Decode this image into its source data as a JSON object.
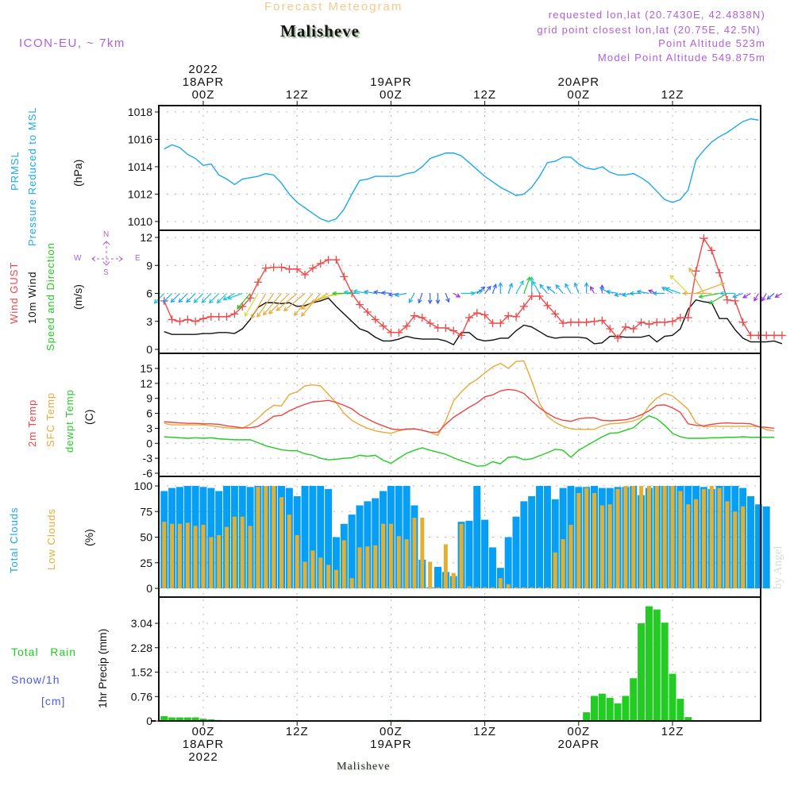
{
  "header": {
    "subtitle": "Forecast Meteogram",
    "title": "Malisheve",
    "model": "ICON-EU, ~ 7km",
    "requested": "requested lon,lat (20.7430E, 42.4838N)",
    "grid_point": "grid point closest lon,lat (20.75E, 42.5N)",
    "point_altitude": "Point Altitude 523m",
    "model_altitude": "Model Point Altitude 549.875m"
  },
  "footer": {
    "station": "Malisheve",
    "credit": "by Angel"
  },
  "top_axis": [
    {
      "hour": 0,
      "lines": [
        "2022",
        "18APR",
        "00Z"
      ]
    },
    {
      "hour": 12,
      "lines": [
        "12Z"
      ]
    },
    {
      "hour": 24,
      "lines": [
        "19APR",
        "00Z"
      ]
    },
    {
      "hour": 36,
      "lines": [
        "12Z"
      ]
    },
    {
      "hour": 48,
      "lines": [
        "20APR",
        "00Z"
      ]
    },
    {
      "hour": 60,
      "lines": [
        "12Z"
      ]
    }
  ],
  "bottom_axis": [
    {
      "hour": 0,
      "lines": [
        "00Z",
        "18APR",
        "2022"
      ]
    },
    {
      "hour": 12,
      "lines": [
        "12Z"
      ]
    },
    {
      "hour": 24,
      "lines": [
        "00Z",
        "19APR"
      ]
    },
    {
      "hour": 36,
      "lines": [
        "12Z"
      ]
    },
    {
      "hour": 48,
      "lines": [
        "00Z",
        "20APR"
      ]
    },
    {
      "hour": 60,
      "lines": [
        "12Z"
      ]
    }
  ],
  "labels": {
    "pressure": {
      "l1": "PRMSL",
      "l2": "Pressure Reduced to MSL",
      "unit": "(hPa)"
    },
    "wind": {
      "l1": "Wind GUST",
      "l2": "10m Wind",
      "l3": "Speed and Direction",
      "unit": "(m/s)",
      "compass": {
        "n": "N",
        "s": "S",
        "w": "W",
        "e": "E"
      }
    },
    "temp": {
      "l1": "2m Temp",
      "l2": "SFC Temp",
      "l3": "dewpt Temp",
      "unit": "(C)"
    },
    "clouds": {
      "l1": "Total Clouds",
      "l2": "Low Clouds",
      "unit": "(%)"
    },
    "precip": {
      "l1": "Total",
      "l1b": "Rain",
      "l2": "Snow/1h",
      "l3": "[cm]",
      "unit": "1hr Precip (mm)"
    }
  },
  "colors": {
    "pressure": "#1ea7ee",
    "gust": "#f04848",
    "wind": "#111111",
    "temp2m": "#ee4444",
    "sfc": "#e8a93a",
    "dewpt": "#22cc22",
    "total_clouds": "#079ff5",
    "low_clouds": "#e4ae30",
    "rain": "#22cc22",
    "snow": "#4a5ae8",
    "label_purple": "#b15fd8"
  },
  "chart_data": [
    {
      "type": "line",
      "title": "PRMSL Pressure Reduced to MSL",
      "ylabel": "(hPa)",
      "ylim": [
        1010,
        1018
      ],
      "yticks": [
        1010,
        1012,
        1014,
        1016,
        1018
      ],
      "x_start_hour": -5,
      "x_step_hours": 1,
      "series": [
        {
          "name": "PRMSL",
          "values": [
            1015.3,
            1015.6,
            1015.4,
            1014.9,
            1014.6,
            1014.1,
            1014.2,
            1013.4,
            1013.1,
            1012.7,
            1013.1,
            1013.2,
            1013.3,
            1013.5,
            1013.4,
            1012.8,
            1012.0,
            1011.4,
            1011.0,
            1010.6,
            1010.2,
            1010.0,
            1010.2,
            1010.9,
            1012.0,
            1013.0,
            1013.1,
            1013.3,
            1013.3,
            1013.3,
            1013.3,
            1013.5,
            1013.6,
            1014.0,
            1014.6,
            1014.8,
            1015.0,
            1015.0,
            1014.8,
            1014.3,
            1013.8,
            1013.3,
            1012.9,
            1012.5,
            1012.2,
            1011.9,
            1012.0,
            1012.5,
            1013.3,
            1014.3,
            1014.4,
            1014.7,
            1014.7,
            1014.2,
            1013.9,
            1013.8,
            1014.0,
            1013.6,
            1013.4,
            1013.4,
            1013.5,
            1013.2,
            1012.8,
            1012.2,
            1011.6,
            1011.4,
            1011.6,
            1012.3,
            1014.5,
            1015.2,
            1015.8,
            1016.2,
            1016.5,
            1016.9,
            1017.3,
            1017.5,
            1017.4
          ]
        }
      ]
    },
    {
      "type": "line",
      "title": "Wind GUST / 10m Wind Speed and Direction",
      "ylabel": "(m/s)",
      "ylim": [
        0,
        12
      ],
      "yticks": [
        0,
        3,
        6,
        9,
        12
      ],
      "x_start_hour": -5,
      "x_step_hours": 1,
      "series": [
        {
          "name": "Wind GUST",
          "values": [
            5.2,
            3.2,
            3.0,
            3.2,
            3.0,
            3.3,
            3.5,
            3.5,
            3.5,
            3.8,
            4.6,
            5.5,
            7.2,
            8.7,
            8.8,
            8.8,
            8.6,
            8.6,
            8.0,
            8.7,
            9.2,
            9.6,
            9.6,
            7.8,
            6.0,
            4.8,
            4.0,
            3.2,
            2.5,
            1.8,
            1.8,
            2.5,
            3.6,
            3.4,
            2.8,
            2.3,
            2.3,
            2.0,
            1.5,
            3.4,
            3.9,
            3.7,
            2.8,
            2.8,
            3.6,
            3.5,
            4.6,
            5.7,
            5.7,
            4.7,
            3.8,
            2.8,
            2.9,
            2.9,
            2.9,
            3.0,
            3.1,
            2.2,
            1.2,
            2.4,
            2.2,
            2.9,
            2.7,
            2.9,
            2.9,
            3.0,
            3.4,
            3.4,
            8.4,
            11.9,
            10.6,
            8.2,
            5.3,
            5.2,
            2.9,
            1.5,
            1.5,
            1.5,
            1.5,
            1.5
          ]
        },
        {
          "name": "10m Wind",
          "values": [
            1.9,
            1.6,
            1.6,
            1.6,
            1.6,
            1.7,
            1.7,
            1.8,
            1.8,
            1.7,
            2.2,
            3.2,
            4.5,
            5.0,
            5.0,
            4.9,
            5.0,
            4.6,
            4.7,
            5.0,
            5.2,
            5.5,
            4.6,
            3.8,
            3.0,
            2.2,
            1.9,
            1.3,
            0.9,
            0.9,
            1.1,
            1.4,
            1.2,
            1.1,
            1.1,
            1.1,
            0.9,
            0.5,
            1.8,
            1.8,
            1.1,
            0.9,
            1.0,
            1.2,
            1.2,
            2.0,
            2.6,
            2.4,
            1.9,
            1.4,
            1.2,
            1.3,
            1.3,
            1.3,
            1.2,
            0.6,
            0.7,
            1.4,
            1.4,
            1.3,
            1.3,
            1.3,
            1.5,
            0.8,
            1.4,
            1.5,
            2.2,
            4.3,
            5.3,
            5.1,
            5.0,
            3.3,
            3.3,
            2.1,
            1.2,
            0.8,
            0.8,
            0.8,
            0.9,
            0.6
          ]
        },
        {
          "name": "Wind Direction (deg from)",
          "values": [
            45,
            45,
            45,
            45,
            45,
            45,
            45,
            45,
            45,
            60,
            70,
            40,
            30,
            30,
            35,
            40,
            45,
            50,
            50,
            40,
            40,
            60,
            70,
            80,
            90,
            95,
            100,
            100,
            100,
            95,
            80,
            80,
            30,
            20,
            0,
            0,
            340,
            300,
            270,
            260,
            230,
            220,
            200,
            180,
            200,
            210,
            200,
            180,
            150,
            140,
            130,
            140,
            150,
            160,
            180,
            150,
            180,
            120,
            100,
            80,
            80,
            90,
            100,
            110,
            90,
            120,
            110,
            135,
            250,
            150,
            90,
            80,
            60,
            90,
            70,
            60,
            30,
            30,
            50,
            60
          ]
        }
      ]
    },
    {
      "type": "line",
      "title": "2m Temp / SFC Temp / dewpt Temp",
      "ylabel": "(C)",
      "ylim": [
        -6,
        17
      ],
      "yticks": [
        -6,
        -3,
        0,
        3,
        6,
        9,
        12,
        15
      ],
      "x_start_hour": -5,
      "x_step_hours": 1,
      "series": [
        {
          "name": "2m Temp",
          "values": [
            4.3,
            4.2,
            4.1,
            4.0,
            4.0,
            3.9,
            3.9,
            3.8,
            3.5,
            3.3,
            3.1,
            3.1,
            3.4,
            4.3,
            5.4,
            5.6,
            6.5,
            7.2,
            7.8,
            8.3,
            8.4,
            8.6,
            8.2,
            7.6,
            6.9,
            5.7,
            4.9,
            4.1,
            3.5,
            2.9,
            2.7,
            2.8,
            2.9,
            2.6,
            2.2,
            2.2,
            3.8,
            5.2,
            6.2,
            7.2,
            8.1,
            9.3,
            9.7,
            10.5,
            10.8,
            10.6,
            10.0,
            8.5,
            7.1,
            6.0,
            5.1,
            4.6,
            4.4,
            4.9,
            5.1,
            5.1,
            4.6,
            4.5,
            4.6,
            4.7,
            5.1,
            5.7,
            6.5,
            7.6,
            7.7,
            7.1,
            6.2,
            3.9,
            3.6,
            3.5,
            3.8,
            4.0,
            4.1,
            4.0,
            4.0,
            3.9,
            3.3,
            3.2,
            3.0
          ]
        },
        {
          "name": "SFC Temp",
          "values": [
            4.0,
            3.7,
            3.7,
            3.7,
            3.7,
            3.7,
            3.5,
            3.3,
            3.1,
            3.0,
            3.0,
            3.8,
            5.0,
            6.5,
            7.6,
            7.5,
            9.8,
            10.3,
            11.5,
            11.7,
            11.5,
            9.8,
            8.1,
            6.0,
            4.6,
            3.7,
            3.0,
            2.5,
            2.2,
            2.0,
            2.5,
            2.9,
            2.9,
            2.6,
            2.2,
            1.6,
            4.5,
            8.5,
            10.3,
            11.8,
            12.8,
            14.1,
            15.3,
            16.0,
            15.0,
            16.4,
            16.5,
            12.5,
            8.0,
            5.4,
            4.2,
            3.4,
            2.9,
            2.8,
            2.8,
            2.8,
            3.5,
            3.9,
            4.0,
            4.2,
            4.5,
            5.1,
            7.5,
            9.1,
            10.0,
            9.5,
            8.2,
            6.8,
            4.1,
            3.3,
            3.4,
            3.4,
            3.4,
            3.4,
            3.4,
            3.4,
            3.4,
            2.7,
            2.5
          ]
        },
        {
          "name": "dewpt Temp",
          "values": [
            1.3,
            1.2,
            1.1,
            1.0,
            1.1,
            1.0,
            1.1,
            0.9,
            0.8,
            0.7,
            0.7,
            0.7,
            0.1,
            -0.5,
            -0.9,
            -1.3,
            -1.5,
            -1.5,
            -2.1,
            -2.4,
            -3.0,
            -3.3,
            -3.2,
            -3.0,
            -2.9,
            -2.4,
            -2.6,
            -2.4,
            -3.4,
            -4.0,
            -3.0,
            -2.0,
            -1.4,
            -0.9,
            -1.4,
            -1.8,
            -2.2,
            -2.9,
            -3.5,
            -4.0,
            -4.6,
            -4.5,
            -3.7,
            -4.1,
            -2.8,
            -2.7,
            -3.3,
            -3.1,
            -2.5,
            -1.9,
            -1.2,
            -1.4,
            -2.8,
            -1.4,
            -0.5,
            0.4,
            1.3,
            2.0,
            2.1,
            2.6,
            3.1,
            4.5,
            5.5,
            4.9,
            3.6,
            2.0,
            1.3,
            1.0,
            1.0,
            1.0,
            1.1,
            1.1,
            1.2,
            1.2,
            1.3,
            1.2,
            1.2,
            1.2,
            1.2
          ]
        }
      ]
    },
    {
      "type": "bar",
      "title": "Total Clouds / Low Clouds",
      "ylabel": "(%)",
      "ylim": [
        0,
        100
      ],
      "yticks": [
        0,
        25,
        50,
        75,
        100
      ],
      "x_start_hour": -5,
      "x_step_hours": 1,
      "series": [
        {
          "name": "Total Clouds",
          "values": [
            95,
            98,
            99,
            100,
            100,
            99,
            98,
            95,
            100,
            100,
            100,
            99,
            100,
            100,
            100,
            100,
            98,
            90,
            100,
            100,
            100,
            97,
            50,
            63,
            72,
            81,
            85,
            88,
            95,
            100,
            100,
            100,
            81,
            28,
            1,
            21,
            16,
            12,
            65,
            66,
            100,
            67,
            40,
            20,
            50,
            70,
            85,
            90,
            100,
            100,
            87,
            98,
            100,
            99,
            99,
            100,
            98,
            98,
            99,
            99,
            100,
            91,
            98,
            100,
            100,
            100,
            100,
            100,
            100,
            99,
            97,
            100,
            100,
            100,
            98,
            90,
            82,
            80
          ]
        },
        {
          "name": "Low Clouds",
          "values": [
            65,
            63,
            63,
            64,
            61,
            62,
            50,
            52,
            60,
            70,
            70,
            61,
            99,
            100,
            100,
            89,
            72,
            52,
            26,
            37,
            30,
            23,
            18,
            47,
            10,
            40,
            41,
            42,
            63,
            63,
            51,
            48,
            69,
            69,
            26,
            1,
            43,
            15,
            63,
            2,
            1,
            1,
            1,
            10,
            4,
            1,
            1,
            1,
            1,
            1,
            35,
            48,
            62,
            93,
            98,
            93,
            81,
            82,
            97,
            100,
            100,
            100,
            100,
            100,
            100,
            100,
            95,
            82,
            87,
            97,
            100,
            98,
            85,
            75,
            80
          ]
        }
      ]
    },
    {
      "type": "bar",
      "title": "Total Rain / Snow 1h",
      "ylabel": "1hr Precip (mm)",
      "ylim": [
        0,
        3.6
      ],
      "yticks": [
        0,
        0.76,
        1.52,
        2.28,
        3.04
      ],
      "x_start_hour": -5,
      "x_step_hours": 1,
      "series": [
        {
          "name": "Total Rain",
          "values": [
            0.15,
            0.11,
            0.11,
            0.11,
            0.11,
            0.07,
            0.05,
            0.03,
            0,
            0,
            0,
            0,
            0,
            0,
            0,
            0,
            0.02,
            0,
            0,
            0,
            0,
            0,
            0,
            0,
            0,
            0,
            0,
            0,
            0,
            0.03,
            0.03,
            0.03,
            0,
            0,
            0,
            0,
            0,
            0,
            0,
            0,
            0,
            0,
            0,
            0,
            0,
            0,
            0,
            0,
            0,
            0,
            0,
            0,
            0.02,
            0,
            0.27,
            0.78,
            0.85,
            0.72,
            0.55,
            0.78,
            1.33,
            3.04,
            3.57,
            3.47,
            3.06,
            1.47,
            0.69,
            0.12,
            0,
            0,
            0,
            0,
            0,
            0,
            0,
            0,
            0
          ]
        },
        {
          "name": "Snow/1h",
          "values": [
            0,
            0,
            0,
            0,
            0,
            0,
            0,
            0,
            0,
            0,
            0,
            0,
            0,
            0,
            0,
            0,
            0,
            0,
            0,
            0,
            0,
            0,
            0,
            0,
            0,
            0,
            0,
            0,
            0,
            0,
            0,
            0,
            0,
            0,
            0,
            0,
            0,
            0,
            0,
            0,
            0,
            0,
            0,
            0,
            0,
            0,
            0,
            0,
            0,
            0,
            0,
            0,
            0,
            0,
            0,
            0,
            0,
            0,
            0,
            0,
            0,
            0,
            0,
            0,
            0,
            0,
            0,
            0,
            0,
            0,
            0,
            0,
            0,
            0,
            0,
            0,
            0
          ]
        }
      ]
    }
  ]
}
